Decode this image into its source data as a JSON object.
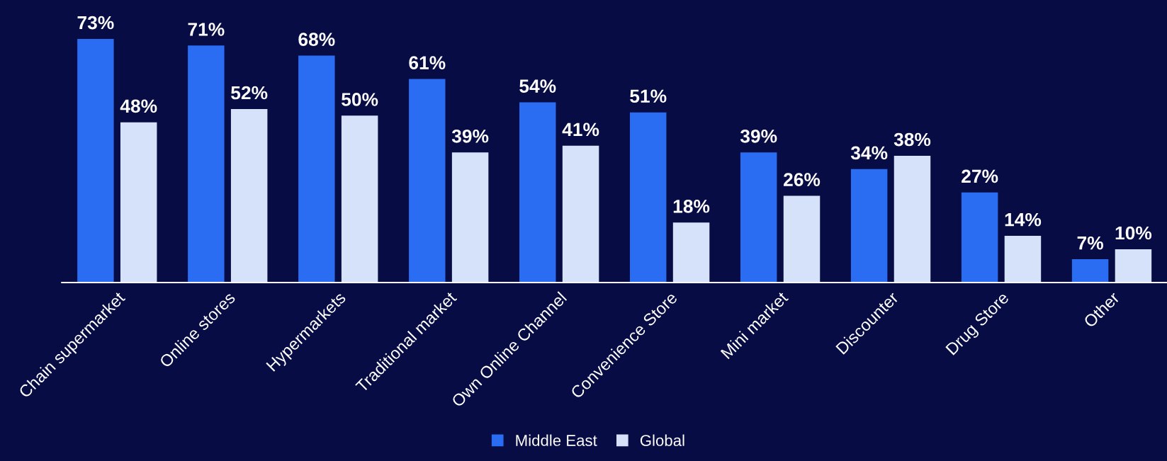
{
  "chart_data": {
    "type": "bar",
    "categories": [
      "Chain supermarket",
      "Online stores",
      "Hypermarkets",
      "Traditional market",
      "Own Online Channel",
      "Convenience Store",
      "Mini market",
      "Discounter",
      "Drug Store",
      "Other"
    ],
    "series": [
      {
        "name": "Middle East",
        "color": "#2a6cf2",
        "values": [
          73,
          71,
          68,
          61,
          54,
          51,
          39,
          34,
          27,
          7
        ],
        "value_labels": [
          "73%",
          "71%",
          "68%",
          "61%",
          "54%",
          "51%",
          "39%",
          "34%",
          "27%",
          "7%"
        ]
      },
      {
        "name": "Global",
        "color": "#d6e2fa",
        "values": [
          48,
          52,
          50,
          39,
          41,
          18,
          26,
          38,
          14,
          10
        ],
        "value_labels": [
          "48%",
          "52%",
          "50%",
          "39%",
          "41%",
          "18%",
          "26%",
          "38%",
          "14%",
          "10%"
        ]
      }
    ],
    "legend": "bottom",
    "grid": false
  }
}
